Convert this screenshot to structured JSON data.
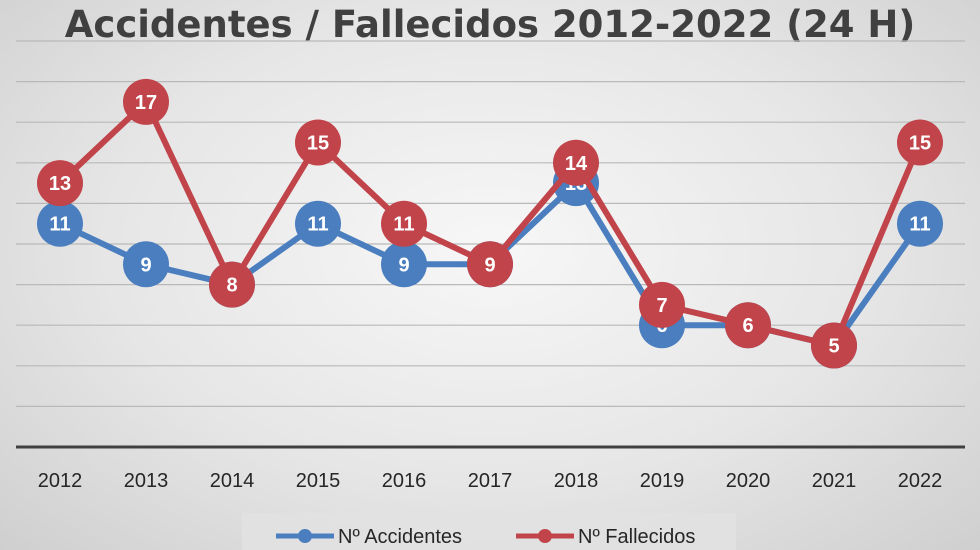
{
  "chart_data": {
    "type": "line",
    "title": "Accidentes / Fallecidos 2012-2022 (24 H)",
    "xlabel": "",
    "ylabel": "",
    "categories": [
      "2012",
      "2013",
      "2014",
      "2015",
      "2016",
      "2017",
      "2018",
      "2019",
      "2020",
      "2021",
      "2022"
    ],
    "series": [
      {
        "name": "Nº Accidentes",
        "color": "#4a7ebf",
        "values": [
          11,
          9,
          8,
          11,
          9,
          9,
          13,
          6,
          6,
          5,
          11
        ]
      },
      {
        "name": "Nº Fallecidos",
        "color": "#c0444a",
        "values": [
          13,
          17,
          8,
          15,
          11,
          9,
          14,
          7,
          6,
          5,
          15
        ]
      }
    ],
    "ylim": [
      0,
      20
    ],
    "grid": true,
    "y_ticks_visible": false,
    "data_labels": true,
    "legend_position": "bottom"
  }
}
